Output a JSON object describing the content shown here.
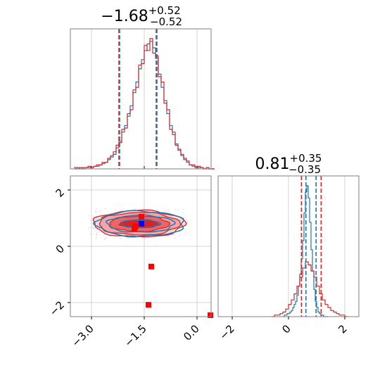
{
  "chart_data": [
    {
      "type": "histogram",
      "panel": "marginal-x",
      "title": {
        "value": "−1.68",
        "plus": "+0.52",
        "minus": "−0.52"
      },
      "xlim": [
        -3.6,
        0.4
      ],
      "grid": true,
      "quantile_lines": {
        "red": [
          -2.22,
          -1.16
        ],
        "blue": [
          -2.2,
          -1.14
        ]
      },
      "series": [
        {
          "color": "#1f77b4",
          "bin_start": -3.5,
          "bin_width": 0.08,
          "counts": [
            0,
            1,
            0,
            1,
            1,
            1,
            1,
            2,
            2,
            3,
            4,
            5,
            7,
            9,
            11,
            16,
            21,
            28,
            33,
            40,
            48,
            58,
            66,
            76,
            83,
            90,
            95,
            97,
            92,
            84,
            72,
            62,
            52,
            42,
            33,
            26,
            19,
            14,
            10,
            7,
            5,
            3,
            2,
            2,
            1,
            1,
            0,
            0,
            0,
            0
          ]
        },
        {
          "color": "#d62728",
          "bin_start": -3.5,
          "bin_width": 0.08,
          "counts": [
            1,
            0,
            1,
            0,
            1,
            2,
            1,
            2,
            3,
            3,
            5,
            5,
            8,
            10,
            13,
            18,
            20,
            30,
            31,
            42,
            45,
            60,
            62,
            79,
            80,
            94,
            90,
            99,
            88,
            86,
            70,
            66,
            50,
            45,
            30,
            28,
            18,
            15,
            11,
            8,
            6,
            3,
            3,
            1,
            2,
            1,
            0,
            1,
            0,
            0
          ]
        }
      ]
    },
    {
      "type": "contour",
      "panel": "joint",
      "xlim": [
        -3.6,
        0.4
      ],
      "ylim": [
        -2.5,
        2.5
      ],
      "x_ticks": [
        -3.0,
        -1.5,
        0.0
      ],
      "x_tick_labels": [
        "−3.0",
        "−1.5",
        "0.0"
      ],
      "y_ticks": [
        -2,
        0,
        2
      ],
      "y_tick_labels": [
        "−2",
        "0",
        "2"
      ],
      "grid": true,
      "red_contours": {
        "center": [
          -1.65,
          0.8
        ],
        "levels": [
          [
            0.55,
            0.13
          ],
          [
            0.85,
            0.27
          ],
          [
            1.15,
            0.4
          ],
          [
            1.3,
            0.47
          ]
        ]
      },
      "blue_contours": {
        "center": [
          -1.6,
          0.8
        ],
        "levels": [
          [
            0.55,
            0.14
          ],
          [
            0.95,
            0.3
          ],
          [
            1.25,
            0.45
          ]
        ]
      },
      "markers": [
        {
          "x": -1.58,
          "y": 1.05,
          "color": "#ff0000"
        },
        {
          "x": -1.75,
          "y": 0.7,
          "color": "#ff0000"
        },
        {
          "x": -1.78,
          "y": 0.62,
          "color": "#ff0000"
        },
        {
          "x": -1.3,
          "y": -0.72,
          "color": "#ff0000"
        },
        {
          "x": -1.38,
          "y": -2.08,
          "color": "#ff0000"
        },
        {
          "x": 0.38,
          "y": -2.45,
          "color": "#ff0000"
        },
        {
          "x": -1.58,
          "y": 0.8,
          "color": "#0000ff"
        }
      ]
    },
    {
      "type": "histogram",
      "panel": "marginal-y",
      "title": {
        "value": "0.81",
        "plus": "+0.35",
        "minus": "−0.35"
      },
      "xlim": [
        -2.5,
        2.5
      ],
      "x_ticks": [
        -2,
        0,
        2
      ],
      "x_tick_labels": [
        "−2",
        "0",
        "2"
      ],
      "grid": true,
      "quantile_lines": {
        "red": [
          0.46,
          1.16
        ],
        "blue": [
          0.62,
          0.98
        ]
      },
      "series": [
        {
          "color": "#1f77b4",
          "bin_start": -0.2,
          "bin_width": 0.05,
          "counts": [
            0,
            1,
            1,
            2,
            2,
            3,
            4,
            6,
            8,
            10,
            14,
            20,
            28,
            38,
            50,
            68,
            82,
            86,
            78,
            62,
            44,
            30,
            18,
            10,
            6,
            3,
            2,
            1,
            1,
            0,
            0,
            0
          ]
        },
        {
          "color": "#d62728",
          "bin_start": -0.6,
          "bin_width": 0.1,
          "counts": [
            0,
            1,
            1,
            2,
            3,
            5,
            8,
            11,
            15,
            20,
            26,
            32,
            36,
            34,
            30,
            26,
            20,
            15,
            11,
            8,
            6,
            4,
            3,
            2,
            1,
            1,
            0
          ]
        }
      ]
    }
  ]
}
